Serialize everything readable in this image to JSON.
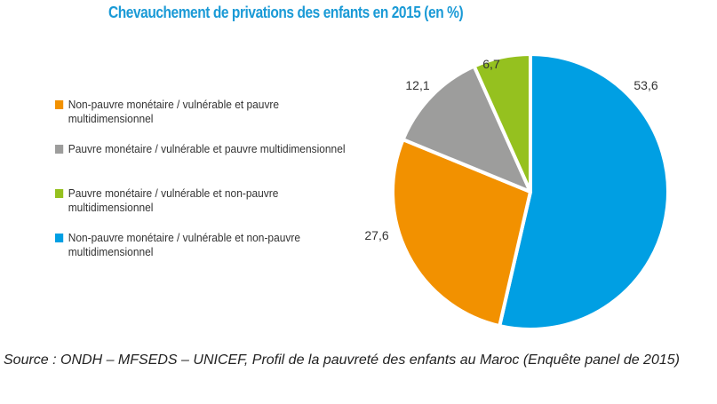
{
  "chart_data": {
    "type": "pie",
    "title": "Chevauchement de privations des enfants en 2015 (en %)",
    "slices": [
      {
        "name": "Non-pauvre monétaire  / vulnérable et non-pauvre multidimensionnel",
        "value": 53.6,
        "label": "53,6",
        "color": "#009fe3"
      },
      {
        "name": "Non-pauvre monétaire / vulnérable et pauvre multidimensionnel",
        "value": 27.6,
        "label": "27,6",
        "color": "#f29100"
      },
      {
        "name": "Pauvre monétaire / vulnérable et pauvre multidimensionnel",
        "value": 12.1,
        "label": "12,1",
        "color": "#9d9d9c"
      },
      {
        "name": "Pauvre monétaire  / vulnérable et non-pauvre multidimensionnel",
        "value": 6.7,
        "label": "6,7",
        "color": "#95c11f"
      }
    ],
    "legend": [
      {
        "label": "Non-pauvre monétaire / vulnérable et pauvre multidimensionnel",
        "color": "#f29100"
      },
      {
        "label": "Pauvre monétaire / vulnérable et pauvre multidimensionnel",
        "color": "#9d9d9c"
      },
      {
        "label": "Pauvre monétaire  / vulnérable et non-pauvre multidimensionnel",
        "color": "#95c11f"
      },
      {
        "label": "Non-pauvre monétaire  / vulnérable et non-pauvre multidimensionnel",
        "color": "#009fe3"
      }
    ],
    "legend_position": "left"
  },
  "source": "Source : ONDH – MFSEDS – UNICEF, Profil de la pauvreté des enfants au Maroc (Enquête panel de 2015)"
}
